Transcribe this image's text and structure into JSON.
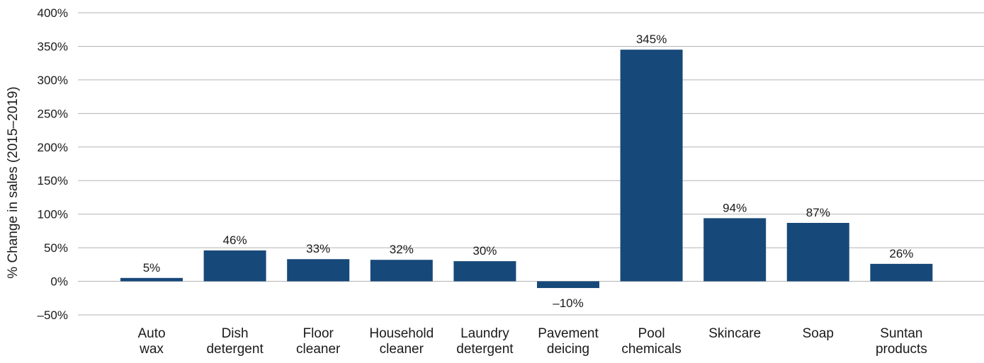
{
  "chart_data": {
    "type": "bar",
    "categories": [
      [
        "Auto",
        "wax"
      ],
      [
        "Dish",
        "detergent"
      ],
      [
        "Floor",
        "cleaner"
      ],
      [
        "Household",
        "cleaner"
      ],
      [
        "Laundry",
        "detergent"
      ],
      [
        "Pavement",
        "deicing"
      ],
      [
        "Pool",
        "chemicals"
      ],
      [
        "Skincare"
      ],
      [
        "Soap"
      ],
      [
        "Suntan",
        "products"
      ]
    ],
    "values": [
      5,
      46,
      33,
      32,
      30,
      -10,
      345,
      94,
      87,
      26
    ],
    "data_labels": [
      "5%",
      "46%",
      "33%",
      "32%",
      "30%",
      "–10%",
      "345%",
      "94%",
      "87%",
      "26%"
    ],
    "ylabel": "% Change in sales (2015–2019)",
    "xlabel": "",
    "title": "",
    "ylim": [
      -50,
      400
    ],
    "yticks": [
      -50,
      0,
      50,
      100,
      150,
      200,
      250,
      300,
      350,
      400
    ],
    "ytick_labels": [
      "–50%",
      "0%",
      "50%",
      "100%",
      "150%",
      "200%",
      "250%",
      "300%",
      "350%",
      "400%"
    ],
    "grid": true,
    "bar_color": "#17487a",
    "grid_color": "#b3b3b3"
  }
}
